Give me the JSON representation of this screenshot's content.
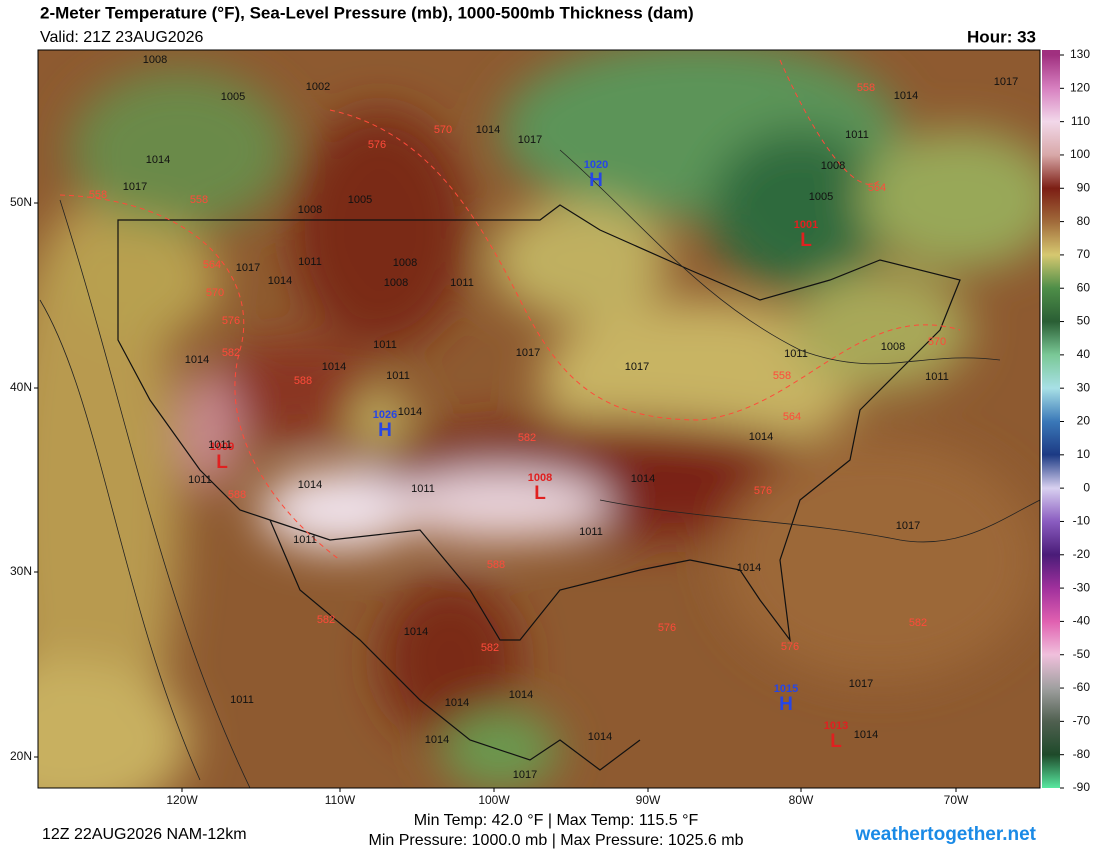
{
  "header": {
    "title": "2-Meter Temperature (°F), Sea-Level Pressure (mb), 1000-500mb Thickness (dam)",
    "valid": "Valid: 21Z 23AUG2026",
    "hour": "Hour: 33"
  },
  "map": {
    "lat_labels": [
      "50N",
      "40N",
      "30N",
      "20N"
    ],
    "lon_labels": [
      "120W",
      "110W",
      "100W",
      "90W",
      "80W",
      "70W"
    ],
    "centers": [
      {
        "label": "H",
        "pressure": "1020",
        "color": "#2646e6"
      },
      {
        "label": "H",
        "pressure": "1026",
        "color": "#2646e6"
      },
      {
        "label": "L",
        "pressure": "1001",
        "color": "#e02020"
      },
      {
        "label": "L",
        "pressure": "1009",
        "color": "#e02020"
      },
      {
        "label": "L",
        "pressure": "1008",
        "color": "#e02020"
      },
      {
        "label": "H",
        "pressure": "1015",
        "color": "#2646e6"
      },
      {
        "label": "L",
        "pressure": "1013",
        "color": "#e02020"
      }
    ],
    "isobar_labels": [
      "1008",
      "1005",
      "1002",
      "1014",
      "1017",
      "1014",
      "1017",
      "1008",
      "1005",
      "1011",
      "1008",
      "1008",
      "1011",
      "1014",
      "1017",
      "1017",
      "1017",
      "1014",
      "1011",
      "1014",
      "1011",
      "1014",
      "1014",
      "1011",
      "1008",
      "1011",
      "1014",
      "1017",
      "1011",
      "1008",
      "1005",
      "1014",
      "1011",
      "1014",
      "1011",
      "1011",
      "1014",
      "1017",
      "1014",
      "1014",
      "1014",
      "1014",
      "1014",
      "1011",
      "1017",
      "1014",
      "1017",
      "1011",
      "1011"
    ],
    "thickness_labels": [
      "570",
      "576",
      "558",
      "558",
      "564",
      "570",
      "576",
      "582",
      "588",
      "582",
      "588",
      "588",
      "582",
      "582",
      "576",
      "576",
      "564",
      "558",
      "558",
      "564",
      "570",
      "576",
      "582"
    ]
  },
  "colorbar": {
    "ticks": [
      130,
      120,
      110,
      100,
      90,
      80,
      70,
      60,
      50,
      40,
      30,
      20,
      10,
      0,
      -10,
      -20,
      -30,
      -40,
      -50,
      -60,
      -70,
      -80,
      -90
    ],
    "colors": [
      "#a0307f",
      "#d780c0",
      "#f2d8ea",
      "#d8a8a8",
      "#7c1e14",
      "#a06a3a",
      "#d6c870",
      "#4e8e48",
      "#2a5e34",
      "#7ac896",
      "#a8e0e6",
      "#3a78b8",
      "#1c3a84",
      "#d8d0f0",
      "#8a5cc0",
      "#4a1c78",
      "#a0309c",
      "#e060b0",
      "#f0c0dc",
      "#a0a0a0",
      "#506050",
      "#1e4a2a",
      "#58e8a0"
    ]
  },
  "footer": {
    "run": "12Z 22AUG2026 NAM-12km",
    "temps": "Min Temp:  42.0 °F | Max Temp: 115.5 °F",
    "pressures": "Min Pressure: 1000.0 mb | Max Pressure: 1025.6 mb",
    "site": "weathertogether.net"
  }
}
